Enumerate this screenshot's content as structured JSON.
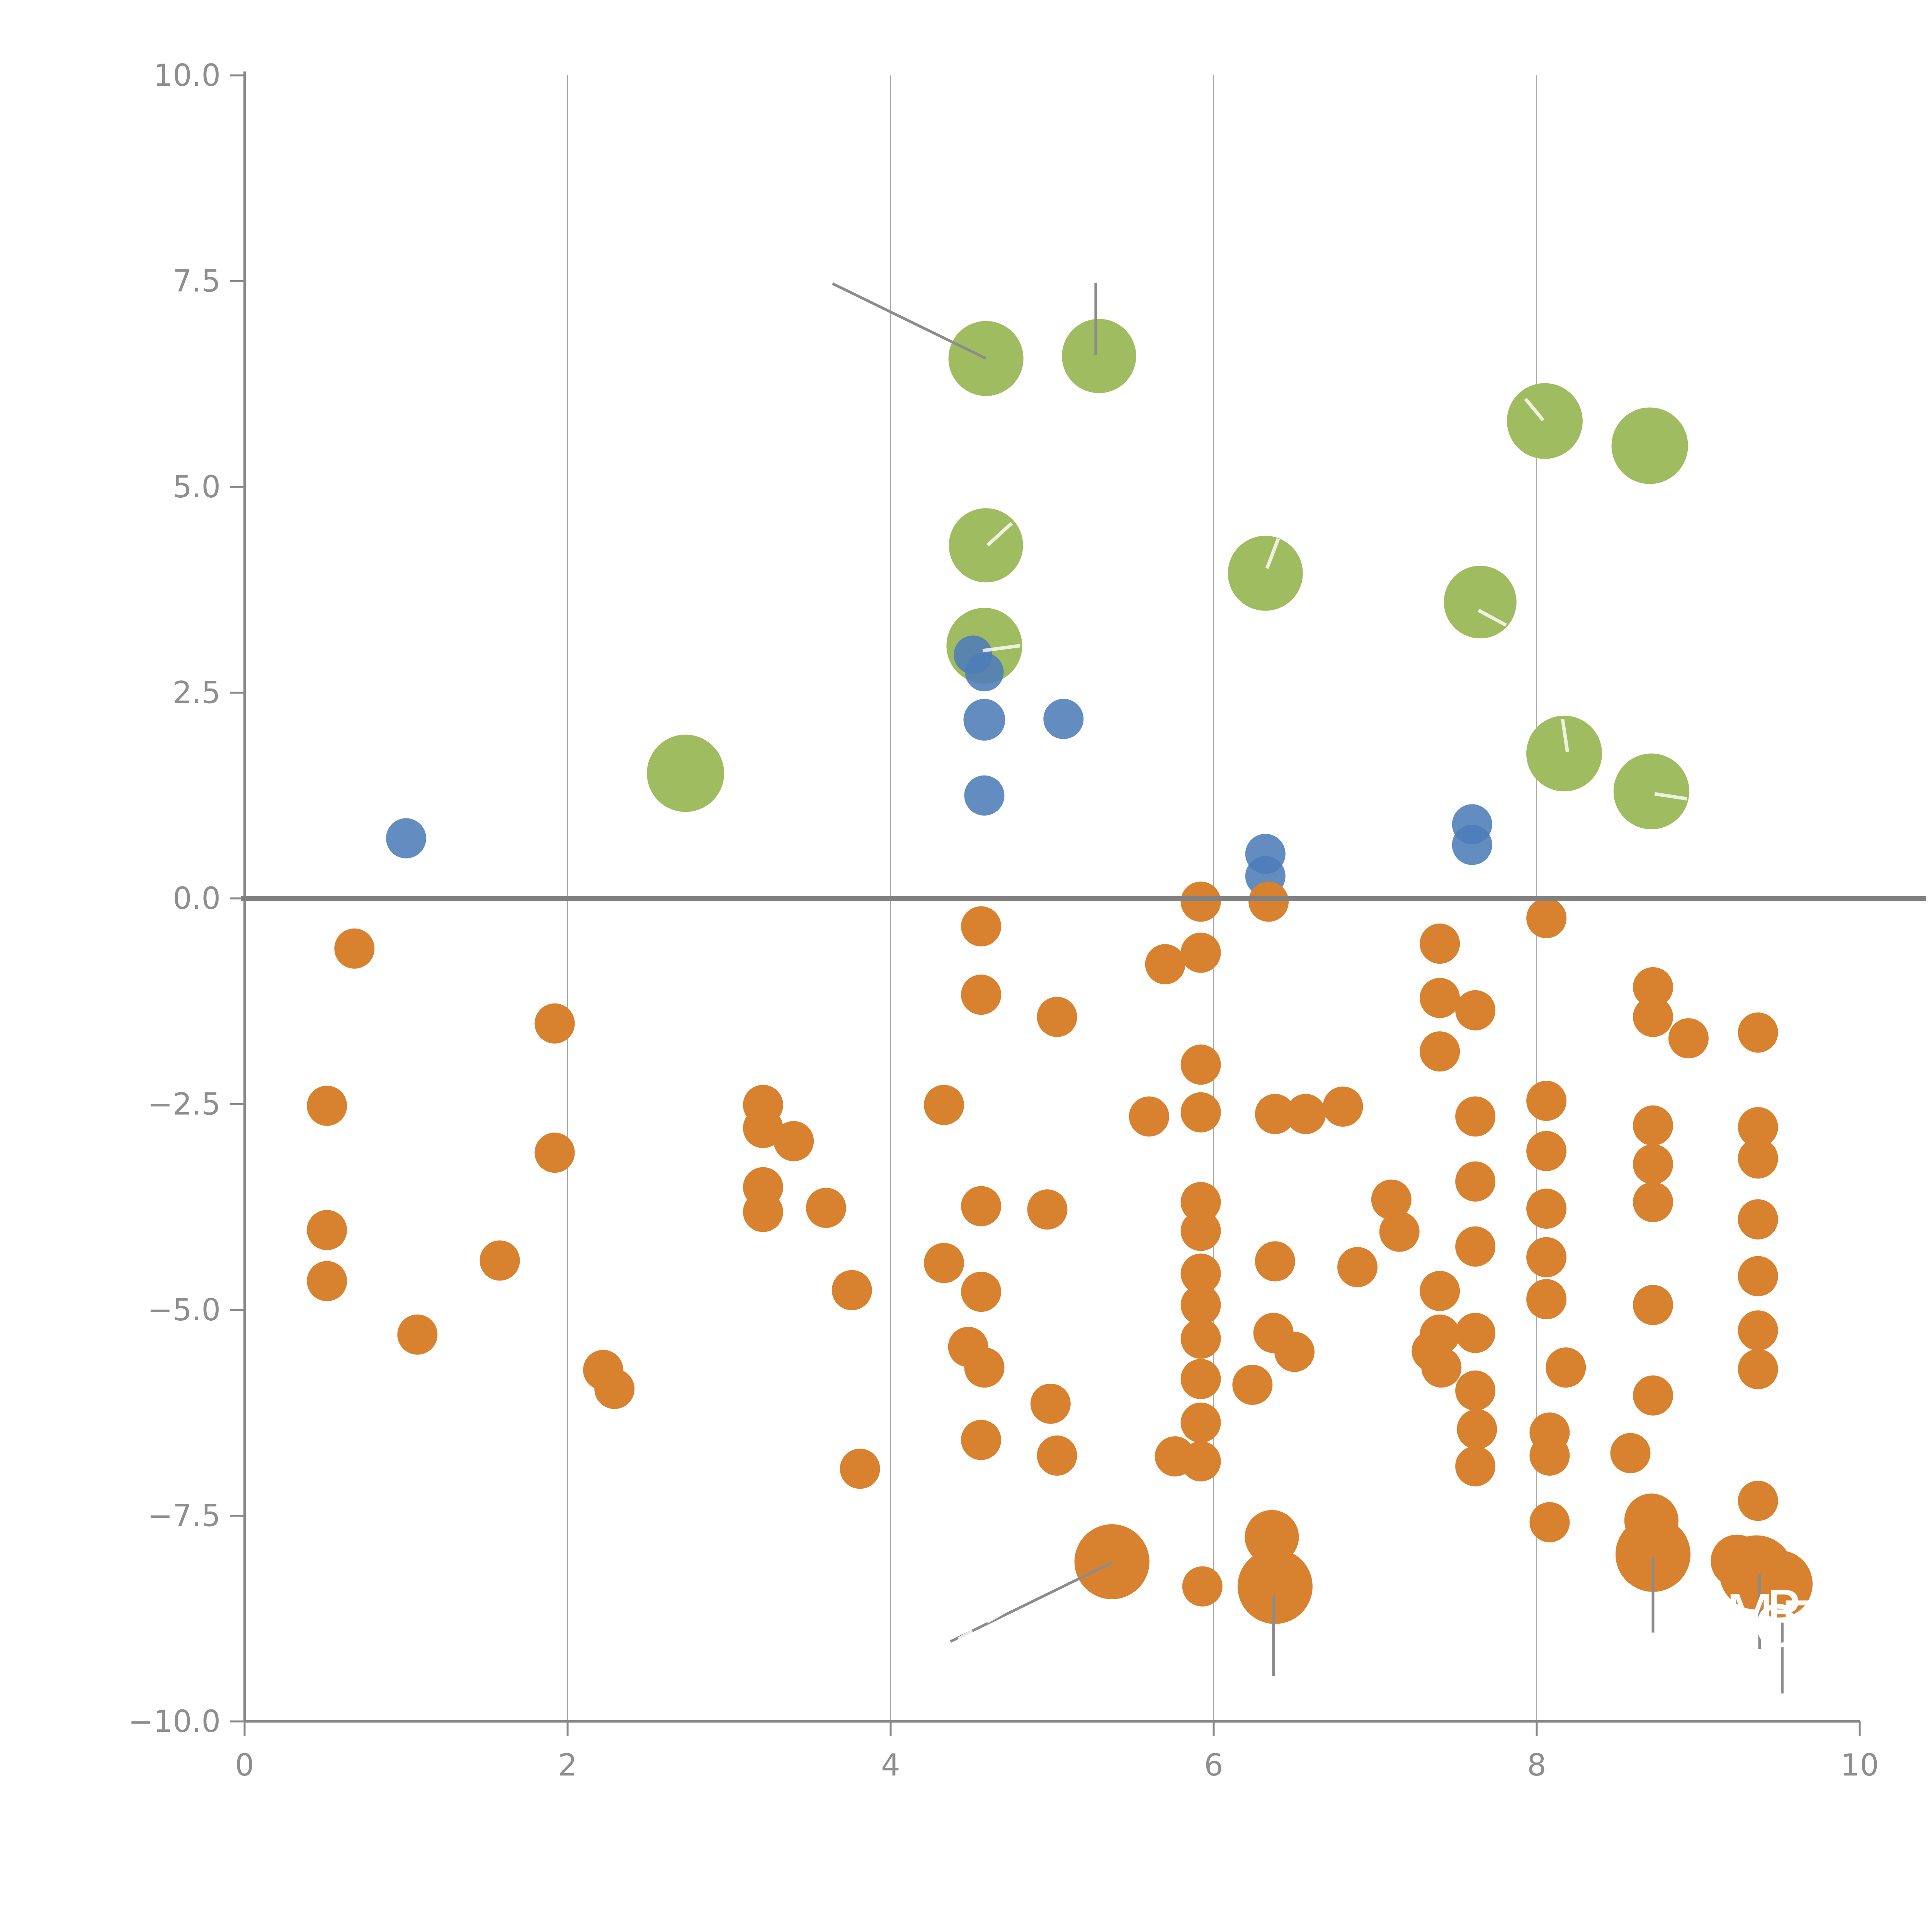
{
  "figure": {
    "background": "#ffffff"
  },
  "chart_data": {
    "type": "scatter",
    "title": "",
    "xlabel": "",
    "ylabel": "",
    "xlim": [
      0,
      10
    ],
    "ylim": [
      -10,
      10
    ],
    "grid": "vertical-only",
    "x_ticks": [
      0,
      2,
      4,
      6,
      8,
      10
    ],
    "x_tick_labels": [
      "0",
      "2",
      "4",
      "6",
      "8",
      "10"
    ],
    "y_ticks": [
      10.0,
      7.5,
      5.0,
      2.5,
      0.0,
      -2.5,
      -5.0,
      -7.5,
      -10.0
    ],
    "y_tick_labels": [
      "10.0",
      "7.5",
      "5.0",
      "2.5",
      "0.0",
      "−2.5",
      "−5.0",
      "−7.5",
      "−10.0"
    ],
    "gridline_xs": [
      2,
      4,
      6,
      8
    ],
    "zero_line_y": 0,
    "colors": {
      "orange": "#D8822F",
      "blue": "#4D7CB8",
      "green": "#A0BC60",
      "axis": "#888888",
      "tick_label": "#8e8e8e",
      "zero_line": "#808080",
      "gridline": "#a6a6a6",
      "leader_gray": "#8c8c8c",
      "leader_white": "rgba(255,255,255,0.8)",
      "annotation_text": "#ffffff"
    },
    "series": [
      {
        "name": "green",
        "color": "#A0BC60",
        "opacity": 1.0,
        "points": [
          [
            2.73,
            1.52,
            100
          ],
          [
            4.59,
            6.56,
            97
          ],
          [
            5.29,
            6.59,
            96
          ],
          [
            4.59,
            4.29,
            96
          ],
          [
            4.58,
            3.07,
            98
          ],
          [
            6.32,
            3.95,
            97
          ],
          [
            7.65,
            3.6,
            94
          ],
          [
            8.05,
            5.8,
            98
          ],
          [
            8.7,
            5.5,
            99
          ],
          [
            8.17,
            1.76,
            98
          ],
          [
            8.71,
            1.3,
            98
          ]
        ]
      },
      {
        "name": "blue",
        "color": "#4D7CB8",
        "opacity": 0.88,
        "points": [
          [
            1.0,
            0.73,
            52
          ],
          [
            4.51,
            2.96,
            50
          ],
          [
            4.58,
            2.75,
            50
          ],
          [
            4.58,
            2.17,
            54
          ],
          [
            5.07,
            2.18,
            52
          ],
          [
            4.58,
            1.25,
            52
          ],
          [
            6.32,
            0.54,
            52
          ],
          [
            6.32,
            0.27,
            52
          ],
          [
            7.6,
            0.9,
            52
          ],
          [
            7.6,
            0.65,
            52
          ]
        ]
      },
      {
        "name": "orange",
        "color": "#D8822F",
        "opacity": 1.0,
        "points": [
          [
            0.68,
            -0.61,
            52
          ],
          [
            0.51,
            -2.52,
            52
          ],
          [
            0.51,
            -4.03,
            52
          ],
          [
            0.51,
            -4.65,
            52
          ],
          [
            1.58,
            -4.4,
            52
          ],
          [
            1.07,
            -5.3,
            52
          ],
          [
            1.92,
            -1.52,
            52
          ],
          [
            1.92,
            -3.09,
            52
          ],
          [
            2.22,
            -5.73,
            52
          ],
          [
            2.29,
            -5.96,
            52
          ],
          [
            3.21,
            -2.51,
            52
          ],
          [
            3.21,
            -2.79,
            52
          ],
          [
            3.4,
            -2.95,
            52
          ],
          [
            3.21,
            -3.51,
            52
          ],
          [
            3.21,
            -3.81,
            52
          ],
          [
            3.6,
            -3.76,
            52
          ],
          [
            3.76,
            -4.76,
            52
          ],
          [
            3.81,
            -6.93,
            52
          ],
          [
            4.33,
            -2.51,
            52
          ],
          [
            4.33,
            -4.43,
            52
          ],
          [
            4.56,
            -0.34,
            52
          ],
          [
            4.56,
            -1.17,
            52
          ],
          [
            5.03,
            -1.44,
            52
          ],
          [
            4.56,
            -3.74,
            52
          ],
          [
            4.97,
            -3.78,
            52
          ],
          [
            4.56,
            -4.78,
            52
          ],
          [
            4.48,
            -5.45,
            52
          ],
          [
            4.58,
            -5.7,
            52
          ],
          [
            4.99,
            -6.14,
            52
          ],
          [
            4.56,
            -6.58,
            52
          ],
          [
            5.03,
            -6.77,
            52
          ],
          [
            5.7,
            -0.8,
            52
          ],
          [
            5.92,
            -0.66,
            52
          ],
          [
            5.92,
            -0.04,
            52
          ],
          [
            6.34,
            -0.04,
            52
          ],
          [
            5.6,
            -2.65,
            52
          ],
          [
            5.92,
            -2.02,
            52
          ],
          [
            5.92,
            -2.6,
            52
          ],
          [
            6.38,
            -2.62,
            52
          ],
          [
            6.57,
            -2.62,
            52
          ],
          [
            6.8,
            -2.53,
            52
          ],
          [
            5.92,
            -3.69,
            52
          ],
          [
            5.92,
            -4.04,
            52
          ],
          [
            6.38,
            -4.41,
            52
          ],
          [
            6.89,
            -4.48,
            52
          ],
          [
            5.92,
            -4.56,
            52
          ],
          [
            5.92,
            -4.94,
            52
          ],
          [
            5.92,
            -5.35,
            52
          ],
          [
            5.92,
            -5.84,
            52
          ],
          [
            5.92,
            -6.37,
            52
          ],
          [
            5.76,
            -6.78,
            52
          ],
          [
            5.92,
            -6.84,
            52
          ],
          [
            6.24,
            -5.91,
            52
          ],
          [
            6.37,
            -5.28,
            52
          ],
          [
            6.5,
            -5.51,
            52
          ],
          [
            7.4,
            -0.55,
            52
          ],
          [
            7.4,
            -1.21,
            52
          ],
          [
            7.62,
            -1.36,
            52
          ],
          [
            7.4,
            -1.86,
            52
          ],
          [
            8.06,
            -0.24,
            52
          ],
          [
            8.72,
            -1.08,
            52
          ],
          [
            8.72,
            -1.44,
            52
          ],
          [
            8.94,
            -1.7,
            52
          ],
          [
            9.37,
            -1.63,
            52
          ],
          [
            7.62,
            -2.65,
            52
          ],
          [
            8.06,
            -2.46,
            52
          ],
          [
            8.06,
            -3.07,
            52
          ],
          [
            7.62,
            -3.44,
            52
          ],
          [
            8.72,
            -2.76,
            52
          ],
          [
            8.72,
            -3.23,
            52
          ],
          [
            8.72,
            -3.69,
            52
          ],
          [
            9.37,
            -2.78,
            52
          ],
          [
            9.37,
            -3.16,
            52
          ],
          [
            9.37,
            -3.9,
            52
          ],
          [
            8.06,
            -3.77,
            52
          ],
          [
            8.06,
            -4.36,
            52
          ],
          [
            7.62,
            -4.23,
            52
          ],
          [
            7.4,
            -4.77,
            52
          ],
          [
            7.1,
            -3.66,
            52
          ],
          [
            7.15,
            -4.05,
            52
          ],
          [
            8.06,
            -4.87,
            52
          ],
          [
            8.72,
            -4.94,
            52
          ],
          [
            9.37,
            -4.59,
            52
          ],
          [
            9.37,
            -5.25,
            52
          ],
          [
            7.4,
            -5.3,
            52
          ],
          [
            7.62,
            -5.28,
            52
          ],
          [
            7.35,
            -5.5,
            52
          ],
          [
            7.41,
            -5.7,
            52
          ],
          [
            7.62,
            -5.98,
            52
          ],
          [
            7.63,
            -6.45,
            52
          ],
          [
            7.62,
            -6.9,
            52
          ],
          [
            8.18,
            -5.7,
            52
          ],
          [
            8.72,
            -6.04,
            52
          ],
          [
            8.08,
            -6.49,
            52
          ],
          [
            8.08,
            -6.77,
            52
          ],
          [
            8.58,
            -6.74,
            52
          ],
          [
            8.08,
            -7.58,
            52
          ],
          [
            9.37,
            -5.72,
            52
          ],
          [
            9.37,
            -7.32,
            52
          ],
          [
            5.93,
            -8.36,
            52
          ],
          [
            6.36,
            -7.76,
            70
          ],
          [
            8.71,
            -7.56,
            70
          ],
          [
            9.24,
            -8.05,
            68
          ],
          [
            5.37,
            -8.06,
            97
          ],
          [
            6.38,
            -8.36,
            97
          ],
          [
            8.72,
            -7.97,
            97
          ],
          [
            9.36,
            -8.19,
            96
          ],
          [
            9.5,
            -8.33,
            87
          ]
        ]
      }
    ],
    "leader_lines": [
      {
        "x1": 3.64,
        "y1": 7.47,
        "x2": 4.59,
        "y2": 6.56,
        "style": "gray",
        "dashed": false
      },
      {
        "x1": 5.27,
        "y1": 7.48,
        "x2": 5.27,
        "y2": 6.6,
        "style": "gray",
        "dashed": false
      },
      {
        "x1": 5.37,
        "y1": -8.07,
        "x2": 4.37,
        "y2": -9.03,
        "style": "gray",
        "dashed": false
      },
      {
        "x1": 6.37,
        "y1": -8.47,
        "x2": 6.37,
        "y2": -9.45,
        "style": "gray",
        "dashed": false
      },
      {
        "x1": 8.72,
        "y1": -8.0,
        "x2": 8.72,
        "y2": -8.92,
        "style": "gray",
        "dashed": false
      },
      {
        "x1": 9.38,
        "y1": -8.21,
        "x2": 9.38,
        "y2": -9.12,
        "style": "gray",
        "dashed": false
      },
      {
        "x1": 9.52,
        "y1": -8.8,
        "x2": 9.52,
        "y2": -9.66,
        "style": "gray",
        "dashed": false
      },
      {
        "x1": 4.57,
        "y1": 3.01,
        "x2": 4.8,
        "y2": 3.07,
        "style": "white",
        "dashed": false
      },
      {
        "x1": 4.6,
        "y1": 4.29,
        "x2": 4.75,
        "y2": 4.56,
        "style": "white",
        "dashed": false
      },
      {
        "x1": 6.33,
        "y1": 4.01,
        "x2": 6.4,
        "y2": 4.37,
        "style": "white",
        "dashed": false
      },
      {
        "x1": 7.93,
        "y1": 6.07,
        "x2": 8.04,
        "y2": 5.81,
        "style": "white",
        "dashed": false
      },
      {
        "x1": 7.64,
        "y1": 3.5,
        "x2": 7.81,
        "y2": 3.32,
        "style": "white",
        "dashed": false
      },
      {
        "x1": 8.16,
        "y1": 2.18,
        "x2": 8.19,
        "y2": 1.78,
        "style": "white",
        "dashed": false
      },
      {
        "x1": 8.73,
        "y1": 1.27,
        "x2": 8.93,
        "y2": 1.21,
        "style": "white",
        "dashed": false
      },
      {
        "x1": 3.97,
        "y1": 8.02,
        "x2": 3.97,
        "y2": 7.56,
        "style": "white",
        "dashed": true
      },
      {
        "x1": 4.71,
        "y1": -8.66,
        "x2": 4.42,
        "y2": -9.0,
        "style": "white",
        "dashed": true
      }
    ],
    "annotations": [
      {
        "text": "M",
        "x": 9.32,
        "y": -8.72
      },
      {
        "text": "R",
        "x": 9.54,
        "y": -8.67
      },
      {
        "text": "C",
        "x": 9.47,
        "y": -8.85
      },
      {
        "text": "E",
        "x": 9.62,
        "y": -8.8
      }
    ]
  }
}
